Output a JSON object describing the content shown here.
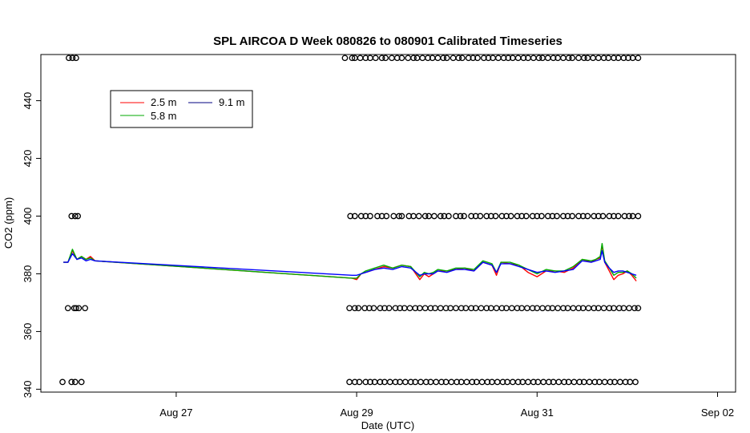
{
  "chart_data": {
    "type": "line",
    "title": "SPL AIRCOA D  Week 080826 to 080901  Calibrated Timeseries",
    "xlabel": "Date (UTC)",
    "ylabel": "CO2 (ppm)",
    "xlim": [
      25.5,
      33.2
    ],
    "ylim": [
      339,
      456
    ],
    "x_unit": "days since Aug 1 (UTC)",
    "x_ticks": [
      {
        "value": 27,
        "label": "Aug 27"
      },
      {
        "value": 29,
        "label": "Aug 29"
      },
      {
        "value": 31,
        "label": "Aug 31"
      },
      {
        "value": 33,
        "label": "Sep 02"
      }
    ],
    "y_ticks": [
      {
        "value": 340,
        "label": "340"
      },
      {
        "value": 360,
        "label": "360"
      },
      {
        "value": 380,
        "label": "380"
      },
      {
        "value": 400,
        "label": "400"
      },
      {
        "value": 420,
        "label": "420"
      },
      {
        "value": 440,
        "label": "440"
      }
    ],
    "legend": {
      "placement": "top-left",
      "entries": [
        {
          "label": "2.5 m",
          "color": "#ff0000"
        },
        {
          "label": "5.8 m",
          "color": "#00aa00"
        },
        {
          "label": "9.1 m",
          "color": "#000080"
        }
      ]
    },
    "series": [
      {
        "name": "2.5 m",
        "color": "#ff0000",
        "x": [
          25.75,
          25.8,
          25.85,
          25.9,
          25.95,
          26.0,
          26.05,
          26.1,
          28.95,
          29.0,
          29.05,
          29.1,
          29.2,
          29.3,
          29.4,
          29.5,
          29.6,
          29.7,
          29.75,
          29.8,
          29.85,
          29.9,
          30.0,
          30.1,
          30.2,
          30.3,
          30.4,
          30.5,
          30.55,
          30.6,
          30.7,
          30.8,
          30.9,
          31.0,
          31.1,
          31.2,
          31.3,
          31.4,
          31.5,
          31.6,
          31.65,
          31.7,
          31.72,
          31.75,
          31.8,
          31.85,
          31.9,
          31.95,
          32.0,
          32.05,
          32.1
        ],
        "y": [
          384,
          384,
          388,
          385,
          386,
          385,
          386,
          384.5,
          378.5,
          378,
          380,
          380.5,
          381.5,
          382.5,
          382,
          383,
          382.5,
          378,
          380,
          379,
          380,
          381,
          381,
          381.5,
          382,
          381,
          384,
          383,
          379.5,
          384,
          383.5,
          383,
          380.5,
          379,
          381,
          381,
          380.5,
          382,
          385,
          384,
          385,
          385.5,
          390,
          384,
          381,
          378,
          379.5,
          380,
          381,
          379.5,
          377.5
        ]
      },
      {
        "name": "5.8 m",
        "color": "#00aa00",
        "x": [
          25.75,
          25.8,
          25.85,
          25.9,
          25.95,
          26.0,
          26.05,
          26.1,
          28.95,
          29.0,
          29.05,
          29.1,
          29.2,
          29.3,
          29.4,
          29.5,
          29.6,
          29.7,
          29.75,
          29.8,
          29.85,
          29.9,
          30.0,
          30.1,
          30.2,
          30.3,
          30.4,
          30.5,
          30.55,
          30.6,
          30.7,
          30.8,
          30.9,
          31.0,
          31.1,
          31.2,
          31.3,
          31.4,
          31.5,
          31.6,
          31.65,
          31.7,
          31.72,
          31.75,
          31.8,
          31.85,
          31.9,
          31.95,
          32.0,
          32.05,
          32.1
        ],
        "y": [
          384,
          384,
          388.5,
          385,
          386,
          385,
          385.5,
          384.5,
          378.5,
          378.5,
          380,
          381,
          382,
          383,
          382,
          383,
          382.5,
          379,
          380.5,
          380,
          380.5,
          381.5,
          381,
          382,
          382,
          381.5,
          384.5,
          383.5,
          380.5,
          384,
          384,
          383,
          381.5,
          380,
          381.5,
          381,
          381,
          382.5,
          385,
          384.5,
          385,
          386,
          390.5,
          384.5,
          382,
          379.5,
          380.5,
          380.5,
          381,
          380,
          378.5
        ]
      },
      {
        "name": "9.1 m",
        "color": "#0000ff",
        "x": [
          25.75,
          25.8,
          25.85,
          25.9,
          25.95,
          26.0,
          26.05,
          26.1,
          28.95,
          29.0,
          29.05,
          29.1,
          29.2,
          29.3,
          29.4,
          29.5,
          29.6,
          29.7,
          29.75,
          29.8,
          29.85,
          29.9,
          30.0,
          30.1,
          30.2,
          30.3,
          30.4,
          30.5,
          30.55,
          30.6,
          30.7,
          30.8,
          30.9,
          31.0,
          31.1,
          31.2,
          31.3,
          31.4,
          31.5,
          31.6,
          31.65,
          31.7,
          31.72,
          31.75,
          31.8,
          31.85,
          31.9,
          31.95,
          32.0,
          32.05,
          32.1
        ],
        "y": [
          384,
          384,
          387,
          385,
          385.5,
          384.5,
          385,
          384.5,
          379.5,
          379.5,
          380,
          380.5,
          381.5,
          382,
          381.5,
          382.5,
          382,
          379.5,
          380,
          380,
          380,
          381,
          380.5,
          381.5,
          381.5,
          381,
          384,
          383,
          380.5,
          383.5,
          383.5,
          382.5,
          381.5,
          380.5,
          381,
          380.5,
          381,
          381.5,
          384.5,
          384,
          384.5,
          385,
          388,
          384,
          382,
          380.5,
          381,
          381,
          380.5,
          380,
          379.5
        ]
      }
    ],
    "marker_rows": [
      {
        "y": 454.8,
        "x": [
          25.81,
          25.85,
          25.89,
          28.87,
          28.95,
          28.98,
          29.04,
          29.1,
          29.15,
          29.21,
          29.28,
          29.32,
          29.39,
          29.45,
          29.5,
          29.57,
          29.63,
          29.67,
          29.73,
          29.79,
          29.84,
          29.9,
          29.96,
          30.0,
          30.07,
          30.13,
          30.17,
          30.24,
          30.29,
          30.34,
          30.41,
          30.46,
          30.51,
          30.57,
          30.63,
          30.68,
          30.73,
          30.79,
          30.85,
          30.9,
          30.96,
          31.02,
          31.06,
          31.12,
          31.18,
          31.23,
          31.29,
          31.35,
          31.39,
          31.46,
          31.52,
          31.56,
          31.62,
          31.68,
          31.74,
          31.79,
          31.85,
          31.9,
          31.96,
          32.01,
          32.06,
          32.12
        ]
      },
      {
        "y": 400,
        "x": [
          25.84,
          25.88,
          25.91,
          28.93,
          28.98,
          29.05,
          29.1,
          29.15,
          29.23,
          29.28,
          29.33,
          29.41,
          29.47,
          29.5,
          29.58,
          29.63,
          29.69,
          29.76,
          29.8,
          29.86,
          29.93,
          29.97,
          30.02,
          30.1,
          30.15,
          30.19,
          30.27,
          30.32,
          30.37,
          30.44,
          30.49,
          30.54,
          30.61,
          30.66,
          30.71,
          30.78,
          30.83,
          30.88,
          30.95,
          31.0,
          31.05,
          31.12,
          31.17,
          31.22,
          31.29,
          31.34,
          31.39,
          31.46,
          31.51,
          31.56,
          31.63,
          31.68,
          31.73,
          31.8,
          31.85,
          31.9,
          31.97,
          32.02,
          32.06,
          32.12
        ]
      },
      {
        "y": 368.1,
        "x": [
          25.8,
          25.87,
          25.89,
          25.92,
          25.99,
          28.92,
          28.98,
          29.02,
          29.09,
          29.14,
          29.19,
          29.26,
          29.31,
          29.36,
          29.43,
          29.48,
          29.53,
          29.59,
          29.65,
          29.7,
          29.76,
          29.82,
          29.87,
          29.93,
          29.99,
          30.04,
          30.1,
          30.16,
          30.21,
          30.27,
          30.32,
          30.38,
          30.44,
          30.49,
          30.55,
          30.61,
          30.66,
          30.72,
          30.78,
          30.83,
          30.89,
          30.95,
          31.0,
          31.06,
          31.12,
          31.17,
          31.23,
          31.29,
          31.34,
          31.4,
          31.46,
          31.51,
          31.57,
          31.63,
          31.68,
          31.74,
          31.8,
          31.85,
          31.91,
          31.96,
          32.02,
          32.08,
          32.12
        ]
      },
      {
        "y": 342.5,
        "x": [
          25.74,
          25.84,
          25.88,
          25.95,
          28.92,
          28.98,
          29.03,
          29.1,
          29.15,
          29.2,
          29.26,
          29.31,
          29.37,
          29.43,
          29.48,
          29.54,
          29.6,
          29.65,
          29.71,
          29.77,
          29.82,
          29.88,
          29.94,
          29.99,
          30.05,
          30.11,
          30.16,
          30.22,
          30.28,
          30.33,
          30.39,
          30.45,
          30.5,
          30.56,
          30.62,
          30.67,
          30.73,
          30.79,
          30.84,
          30.9,
          30.96,
          31.01,
          31.07,
          31.13,
          31.18,
          31.24,
          31.3,
          31.35,
          31.41,
          31.47,
          31.52,
          31.58,
          31.64,
          31.69,
          31.75,
          31.81,
          31.86,
          31.92,
          31.98,
          32.03,
          32.09
        ]
      }
    ]
  }
}
